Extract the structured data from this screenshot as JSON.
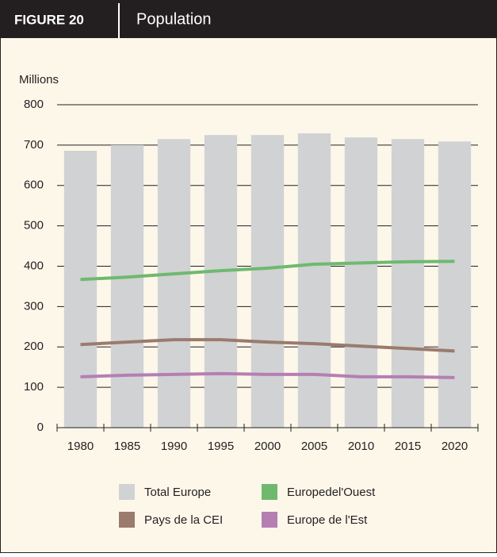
{
  "figure_label": "FIGURE 20",
  "chart_data": {
    "type": "bar",
    "title": "Population",
    "y_label": "Millions",
    "categories": [
      "1980",
      "1985",
      "1990",
      "1995",
      "2000",
      "2005",
      "2010",
      "2015",
      "2020"
    ],
    "series": [
      {
        "name": "Total Europe",
        "type": "bar",
        "color": "#d1d2d4",
        "values": [
          686,
          700,
          715,
          725,
          725,
          729,
          719,
          715,
          709
        ]
      },
      {
        "name": "Europedel'Ouest",
        "type": "line",
        "color": "#6fb96f",
        "values": [
          367,
          373,
          381,
          389,
          395,
          405,
          408,
          411,
          412
        ]
      },
      {
        "name": "Pays de la CEI",
        "type": "line",
        "color": "#9a7b6e",
        "values": [
          206,
          212,
          218,
          218,
          212,
          208,
          202,
          196,
          190
        ]
      },
      {
        "name": "Europe de l'Est",
        "type": "line",
        "color": "#b57fb3",
        "values": [
          126,
          130,
          132,
          134,
          132,
          132,
          126,
          126,
          124
        ]
      }
    ],
    "ylim": [
      0,
      800
    ],
    "yticks": [
      0,
      100,
      200,
      300,
      400,
      500,
      600,
      700,
      800
    ],
    "grid": true
  }
}
